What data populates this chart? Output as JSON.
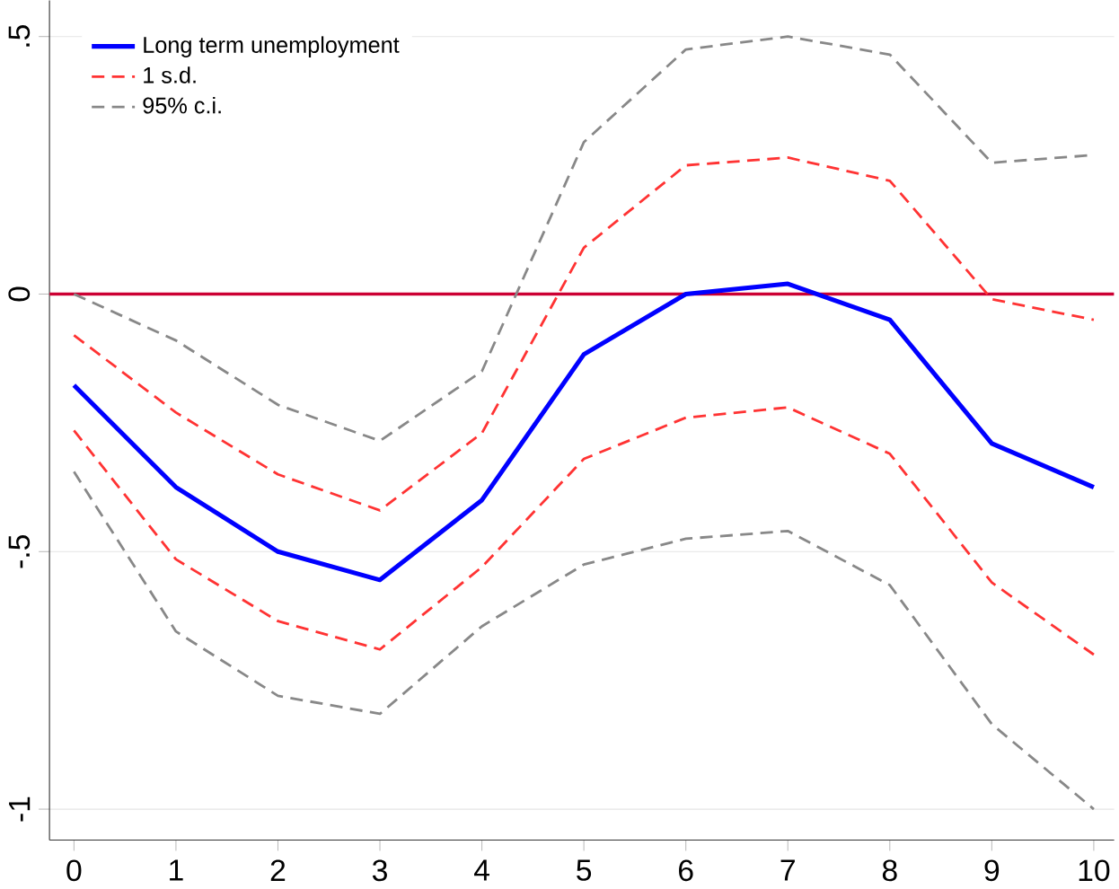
{
  "chart_data": {
    "type": "line",
    "x": [
      0,
      1,
      2,
      3,
      4,
      5,
      6,
      7,
      8,
      9,
      10
    ],
    "xlim": [
      -0.24,
      10.2
    ],
    "ylim": [
      -1.06,
      0.57
    ],
    "xticks": [
      0,
      1,
      2,
      3,
      4,
      5,
      6,
      7,
      8,
      9,
      10
    ],
    "yticks": [
      {
        "value": -1,
        "label": "-1"
      },
      {
        "value": -0.5,
        "label": "-.5"
      },
      0,
      {
        "value": 0.5,
        "label": ".5"
      }
    ],
    "grid": "y",
    "legend": "top left",
    "series": [
      {
        "name": "Long term unemployment",
        "color": "#0000ff",
        "line_style": "solid",
        "values": [
          -0.177,
          -0.375,
          -0.5,
          -0.555,
          -0.4,
          -0.117,
          0.0,
          0.02,
          -0.05,
          -0.29,
          -0.375
        ]
      },
      {
        "name": "1 s.d.",
        "color": "#ff3333",
        "line_style": "dashed",
        "values": [
          -0.08,
          -0.23,
          -0.35,
          -0.42,
          -0.27,
          0.09,
          0.25,
          0.265,
          0.22,
          -0.01,
          -0.05
        ]
      },
      {
        "color": "#ff3333",
        "line_style": "dashed",
        "values": [
          -0.265,
          -0.515,
          -0.635,
          -0.69,
          -0.53,
          -0.32,
          -0.24,
          -0.22,
          -0.31,
          -0.56,
          -0.7
        ]
      },
      {
        "name": "95% c.i.",
        "color": "#888888",
        "line_style": "dashed",
        "values": [
          0.0,
          -0.09,
          -0.215,
          -0.285,
          -0.15,
          0.295,
          0.475,
          0.5,
          0.465,
          0.255,
          0.27
        ]
      },
      {
        "color": "#888888",
        "line_style": "dashed",
        "values": [
          -0.345,
          -0.655,
          -0.78,
          -0.815,
          -0.645,
          -0.525,
          -0.475,
          -0.46,
          -0.565,
          -0.835,
          -1.0
        ]
      }
    ],
    "ref_lines": [
      {
        "axis": "y",
        "value": 0,
        "color": "#cc0033"
      }
    ]
  }
}
